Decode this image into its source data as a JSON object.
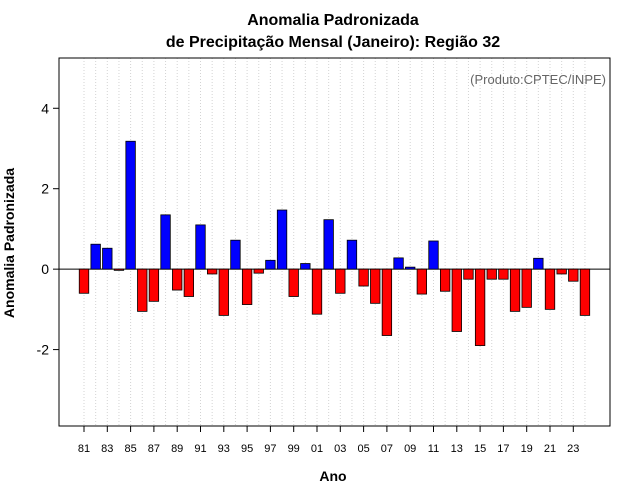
{
  "chart_data": {
    "type": "bar",
    "title_line1": "Anomalia Padronizada",
    "title_line2": "de Precipitação Mensal (Janeiro): Região 32",
    "xlabel": "Ano",
    "ylabel": "Anomalia Padronizada",
    "credit": "(Produto:CPTEC/INPE)",
    "ylim": [
      -3.9,
      5.25
    ],
    "yticks": [
      -2,
      0,
      2,
      4
    ],
    "ytick_labels": [
      "-2",
      "0",
      "2",
      "4"
    ],
    "x_tick_labels": [
      "81",
      "83",
      "85",
      "87",
      "89",
      "91",
      "93",
      "95",
      "97",
      "99",
      "01",
      "03",
      "05",
      "07",
      "09",
      "11",
      "13",
      "15",
      "17",
      "19",
      "21",
      "23"
    ],
    "categories": [
      "1981",
      "1982",
      "1983",
      "1984",
      "1985",
      "1986",
      "1987",
      "1988",
      "1989",
      "1990",
      "1991",
      "1992",
      "1993",
      "1994",
      "1995",
      "1996",
      "1997",
      "1998",
      "1999",
      "2000",
      "2001",
      "2002",
      "2003",
      "2004",
      "2005",
      "2006",
      "2007",
      "2008",
      "2009",
      "2010",
      "2011",
      "2012",
      "2013",
      "2014",
      "2015",
      "2016",
      "2017",
      "2018",
      "2019",
      "2020",
      "2021",
      "2022",
      "2023",
      "2024"
    ],
    "values": [
      -0.6,
      0.62,
      0.52,
      -0.03,
      3.18,
      -1.05,
      -0.8,
      1.35,
      -0.52,
      -0.68,
      1.1,
      -0.12,
      -1.15,
      0.72,
      -0.88,
      -0.1,
      0.22,
      1.47,
      -0.68,
      0.14,
      -1.12,
      1.23,
      -0.6,
      0.72,
      -0.42,
      -0.85,
      -1.65,
      0.28,
      0.05,
      -0.62,
      0.7,
      -0.55,
      -1.55,
      -0.25,
      -1.9,
      -0.25,
      -0.25,
      -1.05,
      -0.95,
      0.27,
      -1.0,
      -0.12,
      -0.3,
      -1.15
    ],
    "positive_color": "#0000ff",
    "negative_color": "#ff0000",
    "grid": true
  }
}
